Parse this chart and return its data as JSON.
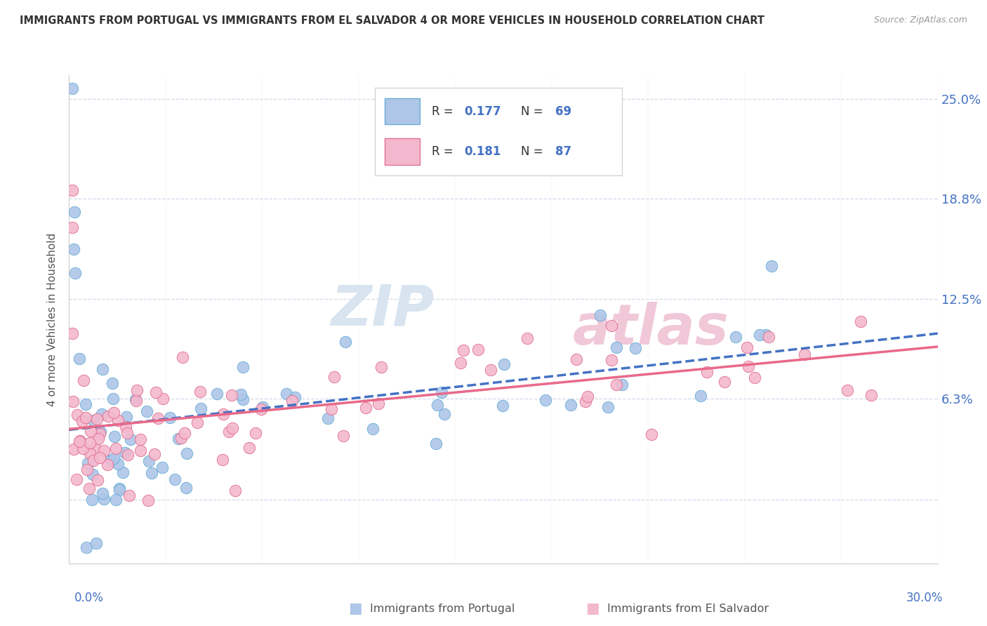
{
  "title": "IMMIGRANTS FROM PORTUGAL VS IMMIGRANTS FROM EL SALVADOR 4 OR MORE VEHICLES IN HOUSEHOLD CORRELATION CHART",
  "source": "Source: ZipAtlas.com",
  "ylabel": "4 or more Vehicles in Household",
  "xmin": 0.0,
  "xmax": 0.3,
  "ymin": -0.04,
  "ymax": 0.265,
  "ytick_vals": [
    0.0,
    0.063,
    0.125,
    0.188,
    0.25
  ],
  "ytick_labels": [
    "",
    "6.3%",
    "12.5%",
    "18.8%",
    "25.0%"
  ],
  "xtick_vals": [
    0.0,
    0.3
  ],
  "xtick_labels": [
    "0.0%",
    "30.0%"
  ],
  "r_portugal": 0.177,
  "n_portugal": 69,
  "r_salvador": 0.181,
  "n_salvador": 87,
  "color_portugal": "#aec6e8",
  "color_salvador": "#f4b8ce",
  "edge_portugal": "#6aaed6",
  "edge_salvador": "#e07090",
  "line_color_portugal": "#4472c4",
  "line_color_salvador": "#e8698a",
  "background_color": "#ffffff",
  "grid_color": "#d0d8e8",
  "title_color": "#333333",
  "axis_label_color": "#555555",
  "tick_label_color": "#4472c4",
  "legend_r_color": "#4472c4",
  "legend_n_color": "#4472c4",
  "watermark_color": "#d8e4f0",
  "watermark2_color": "#f0c8d8"
}
